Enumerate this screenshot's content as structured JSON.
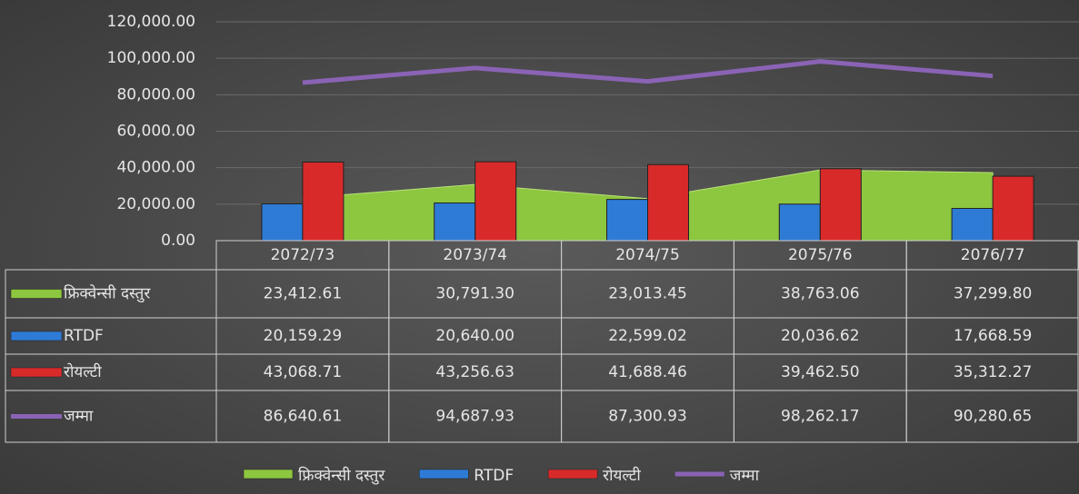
{
  "chart_data": {
    "type": "bar",
    "categories": [
      "2072/73",
      "2073/74",
      "2074/75",
      "2075/76",
      "2076/77"
    ],
    "series": [
      {
        "name": "फ्रिक्वेन्सी दस्तुर",
        "type": "area",
        "color": "#8dc63f",
        "values": [
          23412.61,
          30791.3,
          23013.45,
          38763.06,
          37299.8
        ],
        "value_labels": [
          "23,412.61",
          "30,791.30",
          "23,013.45",
          "38,763.06",
          "37,299.80"
        ]
      },
      {
        "name": "RTDF",
        "type": "bar",
        "color": "#2e7bd6",
        "values": [
          20159.29,
          20640.0,
          22599.02,
          20036.62,
          17668.59
        ],
        "value_labels": [
          "20,159.29",
          "20,640.00",
          "22,599.02",
          "20,036.62",
          "17,668.59"
        ]
      },
      {
        "name": "रोयल्टी",
        "type": "bar",
        "color": "#d92a2a",
        "values": [
          43068.71,
          43256.63,
          41688.46,
          39462.5,
          35312.27
        ],
        "value_labels": [
          "43,068.71",
          "43,256.63",
          "41,688.46",
          "39,462.50",
          "35,312.27"
        ]
      },
      {
        "name": "जम्मा",
        "type": "line",
        "color": "#8a63b5",
        "values": [
          86640.61,
          94687.93,
          87300.93,
          98262.17,
          90280.65
        ],
        "value_labels": [
          "86,640.61",
          "94,687.93",
          "87,300.93",
          "98,262.17",
          "90,280.65"
        ]
      }
    ],
    "ylim": [
      0,
      120000
    ],
    "yticks": [
      {
        "value": 0,
        "label": "0.00"
      },
      {
        "value": 20000,
        "label": "20,000.00"
      },
      {
        "value": 40000,
        "label": "40,000.00"
      },
      {
        "value": 60000,
        "label": "60,000.00"
      },
      {
        "value": 80000,
        "label": "80,000.00"
      },
      {
        "value": 100000,
        "label": "100,000.00"
      },
      {
        "value": 120000,
        "label": "120,000.00"
      }
    ],
    "grid": true,
    "legend": "bottom",
    "data_table": true
  }
}
